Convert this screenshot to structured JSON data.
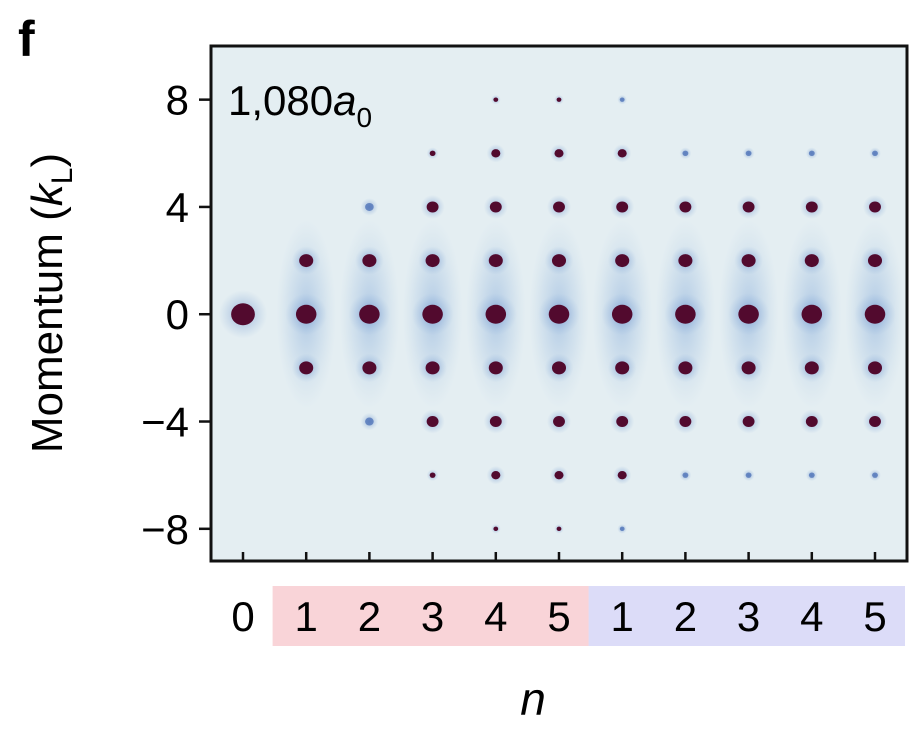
{
  "panel_label": "f",
  "chart_data": {
    "type": "scatter",
    "annotation": {
      "text": "1,080",
      "symbol": "a",
      "subscript": "0"
    },
    "ylabel": {
      "text": "Momentum (",
      "symbol": "k",
      "subscript": "L",
      "close": ")"
    },
    "xlabel": "n",
    "ylim": [
      -9.2,
      10.0
    ],
    "yticks": [
      8,
      4,
      0,
      -4,
      -8
    ],
    "ytick_labels": [
      "8",
      "4",
      "0",
      "−4",
      "−8"
    ],
    "x_tick_labels": [
      "0",
      "1",
      "2",
      "3",
      "4",
      "5",
      "1",
      "2",
      "3",
      "4",
      "5"
    ],
    "groups": [
      {
        "start": 1,
        "end": 5,
        "color": "#f9d4d8"
      },
      {
        "start": 6,
        "end": 10,
        "color": "#dcdcf8"
      }
    ],
    "colors": {
      "background": "#e4eef2",
      "peak": "#520a2e",
      "halo": "#7fa6d6"
    },
    "peaks": [
      {
        "column": 0,
        "momentum": [
          0
        ]
      },
      {
        "column": 1,
        "momentum": [
          -2,
          0,
          2
        ]
      },
      {
        "column": 2,
        "momentum": [
          -4,
          -2,
          0,
          2,
          4
        ]
      },
      {
        "column": 3,
        "momentum": [
          -6,
          -4,
          -2,
          0,
          2,
          4,
          6
        ]
      },
      {
        "column": 4,
        "momentum": [
          -8,
          -6,
          -4,
          -2,
          0,
          2,
          4,
          6,
          8
        ]
      },
      {
        "column": 5,
        "momentum": [
          -8,
          -6,
          -4,
          -2,
          0,
          2,
          4,
          6,
          8
        ]
      },
      {
        "column": 6,
        "momentum": [
          -8,
          -6,
          -4,
          -2,
          0,
          2,
          4,
          6,
          8
        ]
      },
      {
        "column": 7,
        "momentum": [
          -6,
          -4,
          -2,
          0,
          2,
          4,
          6
        ]
      },
      {
        "column": 8,
        "momentum": [
          -6,
          -4,
          -2,
          0,
          2,
          4,
          6
        ]
      },
      {
        "column": 9,
        "momentum": [
          -6,
          -4,
          -2,
          0,
          2,
          4,
          6
        ]
      },
      {
        "column": 10,
        "momentum": [
          -6,
          -4,
          -2,
          0,
          2,
          4,
          6
        ]
      }
    ]
  }
}
